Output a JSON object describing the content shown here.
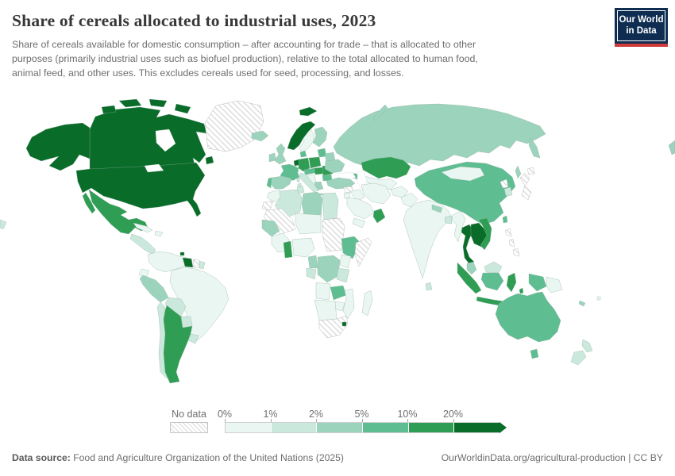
{
  "header": {
    "title": "Share of cereals allocated to industrial uses, 2023",
    "subtitle": "Share of cereals available for domestic consumption – after accounting for trade – that is allocated to other purposes (primarily industrial uses such as biofuel production), relative to the total allocated to human food, animal feed, and other uses. This excludes cereals used for seed, processing, and losses.",
    "logo": {
      "line1": "Our World",
      "line2": "in Data",
      "bg": "#0e2d51",
      "accent": "#cf3a3a"
    }
  },
  "legend": {
    "no_data_label": "No data",
    "ticks": [
      "0%",
      "1%",
      "2%",
      "5%",
      "10%",
      "20%"
    ],
    "colors": [
      "#e9f6f1",
      "#cbe8dd",
      "#9cd3bd",
      "#5fbd92",
      "#2f9e54",
      "#096c29"
    ]
  },
  "footer": {
    "source_label": "Data source:",
    "source_text": " Food and Agriculture Organization of the United Nations (2025)",
    "attribution": "OurWorldinData.org/agricultural-production | CC BY"
  },
  "chart_data": {
    "type": "heatmap",
    "subtype": "choropleth-world-map",
    "title": "Share of cereals allocated to industrial uses",
    "year": "2023",
    "unit": "%",
    "bin_edge_labels": [
      "0%",
      "1%",
      "2%",
      "5%",
      "10%",
      "20%"
    ],
    "bin_labels": [
      "0–1%",
      "1–2%",
      "2–5%",
      "5–10%",
      "10–20%",
      ">20%",
      "No data"
    ],
    "legend_position": "bottom",
    "countries": {
      "canada": {
        "name": "Canada",
        "bin": 6
      },
      "usa": {
        "name": "United States",
        "bin": 6
      },
      "greenland": {
        "name": "Greenland",
        "bin": "no-data"
      },
      "mexico": {
        "name": "Mexico",
        "bin": 5
      },
      "central_america": {
        "name": "Central America",
        "bin": 2
      },
      "cuba": {
        "name": "Cuba",
        "bin": 1
      },
      "hispaniola": {
        "name": "Haiti/Dominican Republic",
        "bin": 1
      },
      "colombia_venezuela": {
        "name": "Colombia/Venezuela",
        "bin": 1
      },
      "guyana": {
        "name": "Guyana",
        "bin": 6
      },
      "suriname": {
        "name": "Suriname",
        "bin": "no-data"
      },
      "fr_guiana": {
        "name": "French Guiana",
        "bin": 2
      },
      "trinidad": {
        "name": "Trinidad and Tobago",
        "bin": 6
      },
      "ecuador": {
        "name": "Ecuador",
        "bin": 1
      },
      "peru": {
        "name": "Peru",
        "bin": 3
      },
      "brazil": {
        "name": "Brazil",
        "bin": 1
      },
      "bolivia": {
        "name": "Bolivia",
        "bin": 2
      },
      "paraguay": {
        "name": "Paraguay",
        "bin": 2
      },
      "uruguay": {
        "name": "Uruguay",
        "bin": 2
      },
      "chile": {
        "name": "Chile",
        "bin": 2
      },
      "argentina": {
        "name": "Argentina",
        "bin": 5
      },
      "iceland": {
        "name": "Iceland",
        "bin": 3
      },
      "norway": {
        "name": "Norway",
        "bin": 6
      },
      "sweden": {
        "name": "Sweden",
        "bin": 1
      },
      "finland": {
        "name": "Finland",
        "bin": 3
      },
      "denmark": {
        "name": "Denmark",
        "bin": 4
      },
      "uk": {
        "name": "United Kingdom",
        "bin": 3
      },
      "ireland": {
        "name": "Ireland",
        "bin": 3
      },
      "benelux": {
        "name": "Belgium/Netherlands",
        "bin": 6
      },
      "france": {
        "name": "France",
        "bin": 4
      },
      "spain": {
        "name": "Spain",
        "bin": 3
      },
      "portugal": {
        "name": "Portugal",
        "bin": 4
      },
      "germany": {
        "name": "Germany",
        "bin": 5
      },
      "poland": {
        "name": "Poland",
        "bin": 5
      },
      "czech_austria": {
        "name": "Czechia/Austria",
        "bin": 4
      },
      "hungary_slovakia": {
        "name": "Hungary/Slovakia",
        "bin": 5
      },
      "romania": {
        "name": "Romania",
        "bin": 5
      },
      "bulgaria": {
        "name": "Bulgaria",
        "bin": 4
      },
      "balkans": {
        "name": "Western Balkans",
        "bin": 1
      },
      "greece": {
        "name": "Greece",
        "bin": 3
      },
      "italy": {
        "name": "Italy",
        "bin": 2
      },
      "baltics": {
        "name": "Baltic states",
        "bin": 4
      },
      "belarus": {
        "name": "Belarus",
        "bin": 3
      },
      "ukraine": {
        "name": "Ukraine",
        "bin": 3
      },
      "russia": {
        "name": "Russia",
        "bin": 3
      },
      "kazakhstan": {
        "name": "Kazakhstan",
        "bin": 5
      },
      "central_asia": {
        "name": "Uzbekistan/Turkmenistan",
        "bin": 1
      },
      "caucasus": {
        "name": "Georgia/Azerbaijan",
        "bin": 4
      },
      "turkey": {
        "name": "Turkey",
        "bin": 3
      },
      "syria": {
        "name": "Syria",
        "bin": "no-data"
      },
      "iraq": {
        "name": "Iraq",
        "bin": 1
      },
      "iran": {
        "name": "Iran",
        "bin": 1
      },
      "afghanistan": {
        "name": "Afghanistan",
        "bin": 1
      },
      "pakistan": {
        "name": "Pakistan",
        "bin": 1
      },
      "jordan_israel": {
        "name": "Jordan/Israel",
        "bin": 1
      },
      "saudi": {
        "name": "Saudi Arabia",
        "bin": 1
      },
      "oman": {
        "name": "Oman",
        "bin": 5
      },
      "yemen": {
        "name": "Yemen",
        "bin": 1
      },
      "morocco": {
        "name": "Morocco",
        "bin": 1
      },
      "w_sahara": {
        "name": "Western Sahara",
        "bin": "no-data"
      },
      "algeria": {
        "name": "Algeria",
        "bin": 2
      },
      "tunisia": {
        "name": "Tunisia",
        "bin": 2
      },
      "libya": {
        "name": "Libya",
        "bin": 3
      },
      "egypt": {
        "name": "Egypt",
        "bin": 2
      },
      "mauritania_mali": {
        "name": "Mauritania/Mali",
        "bin": "no-data"
      },
      "niger_chad": {
        "name": "Niger/Chad",
        "bin": 1
      },
      "sudan": {
        "name": "Sudan",
        "bin": "no-data"
      },
      "senegal_guinea": {
        "name": "Senegal/Guinea",
        "bin": 3
      },
      "west_africa": {
        "name": "Côte d'Ivoire/Liberia",
        "bin": 1
      },
      "ghana": {
        "name": "Ghana",
        "bin": 5
      },
      "nigeria": {
        "name": "Nigeria",
        "bin": 1
      },
      "cameroon": {
        "name": "Cameroon",
        "bin": 3
      },
      "gabon_congo": {
        "name": "Gabon/Congo",
        "bin": 2
      },
      "drc": {
        "name": "Democratic Republic of Congo",
        "bin": 3
      },
      "ethiopia": {
        "name": "Ethiopia",
        "bin": 4
      },
      "somalia": {
        "name": "Somalia",
        "bin": "no-data"
      },
      "kenya": {
        "name": "Kenya",
        "bin": 1
      },
      "tanzania": {
        "name": "Tanzania",
        "bin": 2
      },
      "angola": {
        "name": "Angola",
        "bin": 1
      },
      "zambia": {
        "name": "Zambia",
        "bin": 4
      },
      "mozambique": {
        "name": "Mozambique",
        "bin": 1
      },
      "zimbabwe": {
        "name": "Zimbabwe",
        "bin": 1
      },
      "namibia_botswana": {
        "name": "Namibia/Botswana",
        "bin": 1
      },
      "south_africa": {
        "name": "South Africa",
        "bin": "no-data"
      },
      "eswatini": {
        "name": "Eswatini",
        "bin": 6
      },
      "madagascar": {
        "name": "Madagascar",
        "bin": 1
      },
      "india": {
        "name": "India",
        "bin": 1
      },
      "sri_lanka": {
        "name": "Sri Lanka",
        "bin": 2
      },
      "nepal": {
        "name": "Nepal",
        "bin": 3
      },
      "bangladesh": {
        "name": "Bangladesh",
        "bin": 2
      },
      "myanmar": {
        "name": "Myanmar",
        "bin": 1
      },
      "china": {
        "name": "China",
        "bin": 4
      },
      "mongolia": {
        "name": "Mongolia",
        "bin": 1
      },
      "korea_n": {
        "name": "North Korea",
        "bin": "no-data"
      },
      "korea_s": {
        "name": "South Korea",
        "bin": 2
      },
      "japan": {
        "name": "Japan",
        "bin": "no-data"
      },
      "taiwan": {
        "name": "Taiwan",
        "bin": 4
      },
      "thailand": {
        "name": "Thailand",
        "bin": 6
      },
      "laos_cambodia": {
        "name": "Laos/Cambodia",
        "bin": 6
      },
      "vietnam": {
        "name": "Vietnam",
        "bin": 5
      },
      "malaysia_pen": {
        "name": "Malaysia (Peninsular)",
        "bin": 3
      },
      "sumatra": {
        "name": "Indonesia (Sumatra)",
        "bin": 5
      },
      "java": {
        "name": "Indonesia (Java)",
        "bin": 5
      },
      "borneo_my": {
        "name": "Malaysia (Borneo)",
        "bin": 2
      },
      "borneo_id": {
        "name": "Indonesia (Kalimantan)",
        "bin": 4
      },
      "sulawesi": {
        "name": "Indonesia (Sulawesi)",
        "bin": 5
      },
      "lesser_sunda": {
        "name": "Indonesia (Lesser Sunda)",
        "bin": 5
      },
      "maluku": {
        "name": "Indonesia (Maluku)",
        "bin": 5
      },
      "west_papua": {
        "name": "Indonesia (Papua)",
        "bin": 4
      },
      "png": {
        "name": "Papua New Guinea",
        "bin": 1
      },
      "philippines": {
        "name": "Philippines",
        "bin": "no-data"
      },
      "australia": {
        "name": "Australia",
        "bin": 4
      },
      "nz": {
        "name": "New Zealand",
        "bin": 2
      },
      "new_caledonia": {
        "name": "New Caledonia",
        "bin": 3
      },
      "fiji": {
        "name": "Fiji",
        "bin": 1
      }
    }
  }
}
